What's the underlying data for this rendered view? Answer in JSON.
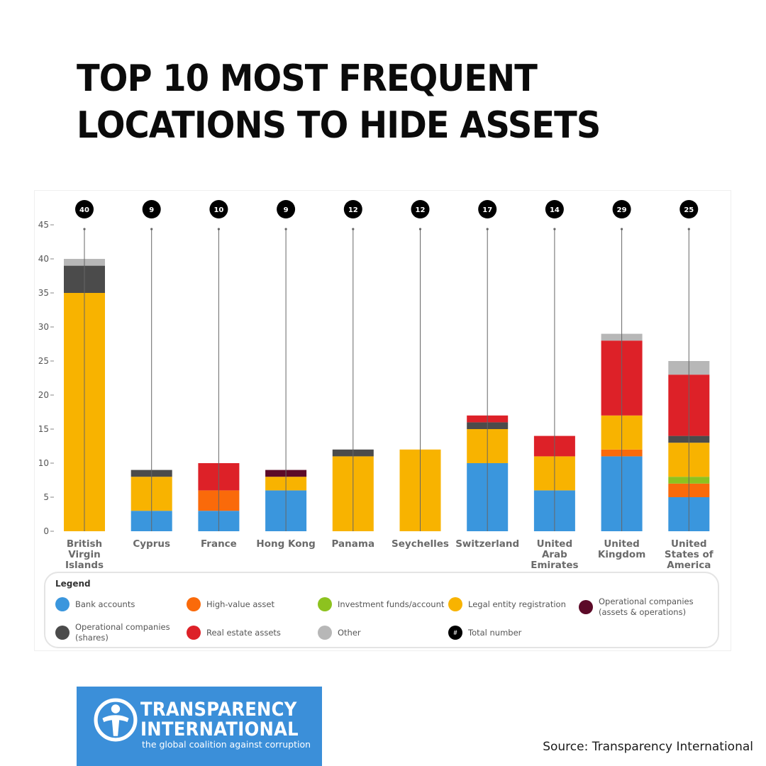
{
  "title_lines": [
    "TOP 10 MOST FREQUENT",
    "LOCATIONS TO HIDE ASSETS"
  ],
  "chart_data": {
    "type": "bar",
    "stacked": true,
    "categories": [
      "British Virgin Islands",
      "Cyprus",
      "France",
      "Hong Kong",
      "Panama",
      "Seychelles",
      "Switzerland",
      "United Arab Emirates",
      "United Kingdom",
      "United States of America"
    ],
    "category_label_lines": [
      [
        "British",
        "Virgin",
        "Islands"
      ],
      [
        "Cyprus"
      ],
      [
        "France"
      ],
      [
        "Hong Kong"
      ],
      [
        "Panama"
      ],
      [
        "Seychelles"
      ],
      [
        "Switzerland"
      ],
      [
        "United",
        "Arab",
        "Emirates"
      ],
      [
        "United",
        "Kingdom"
      ],
      [
        "United",
        "States of",
        "America"
      ]
    ],
    "totals": [
      40,
      9,
      10,
      9,
      12,
      12,
      17,
      14,
      29,
      25
    ],
    "ylim": [
      0,
      45
    ],
    "yticks": [
      0,
      5,
      10,
      15,
      20,
      25,
      30,
      35,
      40,
      45
    ],
    "ytick_labels": [
      "0",
      "5",
      "10",
      "15",
      "20",
      "25",
      "30",
      "35",
      "40",
      "45"
    ],
    "series": [
      {
        "name": "Bank accounts",
        "color": "#3a96dd",
        "values": [
          0,
          3,
          3,
          6,
          0,
          0,
          10,
          6,
          11,
          5
        ]
      },
      {
        "name": "High-value asset",
        "color": "#fa6a0a",
        "values": [
          0,
          0,
          3,
          0,
          0,
          0,
          0,
          0,
          1,
          2
        ]
      },
      {
        "name": "Investment funds/account",
        "color": "#8dc21f",
        "values": [
          0,
          0,
          0,
          0,
          0,
          0,
          0,
          0,
          0,
          1
        ]
      },
      {
        "name": "Legal entity registration",
        "color": "#f8b300",
        "values": [
          35,
          5,
          0,
          2,
          11,
          12,
          5,
          5,
          5,
          5
        ]
      },
      {
        "name": "Operational companies (assets & operations)",
        "color": "#5c0a28",
        "values": [
          0,
          0,
          0,
          1,
          0,
          0,
          0,
          0,
          0,
          0
        ]
      },
      {
        "name": "Operational companies (shares)",
        "color": "#4b4b4b",
        "values": [
          4,
          1,
          0,
          0,
          1,
          0,
          1,
          0,
          0,
          1
        ]
      },
      {
        "name": "Real estate assets",
        "color": "#dd2128",
        "values": [
          0,
          0,
          4,
          0,
          0,
          0,
          1,
          3,
          11,
          9
        ]
      },
      {
        "name": "Other",
        "color": "#b7b7b7",
        "values": [
          1,
          0,
          0,
          0,
          0,
          0,
          0,
          0,
          1,
          2
        ]
      }
    ],
    "legend": {
      "title": "Legend",
      "placement": "bottom",
      "items": [
        {
          "label": "Bank accounts",
          "color": "#3a96dd",
          "icon": "bank-accounts-swatch"
        },
        {
          "label": "High-value asset",
          "color": "#fa6a0a",
          "icon": "high-value-asset-swatch"
        },
        {
          "label": "Investment funds/account",
          "color": "#8dc21f",
          "icon": "investment-funds-swatch"
        },
        {
          "label": "Legal entity registration",
          "color": "#f8b300",
          "icon": "legal-entity-swatch"
        },
        {
          "label": "Operational companies\n(assets & operations)",
          "color": "#5c0a28",
          "icon": "operational-assets-swatch"
        },
        {
          "label": "Operational companies\n(shares)",
          "color": "#4b4b4b",
          "icon": "operational-shares-swatch"
        },
        {
          "label": "Real estate assets",
          "color": "#dd2128",
          "icon": "real-estate-swatch"
        },
        {
          "label": "Other",
          "color": "#b7b7b7",
          "icon": "other-swatch"
        },
        {
          "label": "Total number",
          "color": "#000000",
          "icon": "total-number-swatch",
          "symbol": "#"
        }
      ]
    },
    "grid": false
  },
  "logo": {
    "line1": "TRANSPARENCY",
    "line2": "INTERNATIONAL",
    "tagline": "the global coalition against corruption",
    "background": "#3b8fd9",
    "icon": "transparency-international-emblem"
  },
  "source": "Source: Transparency International"
}
